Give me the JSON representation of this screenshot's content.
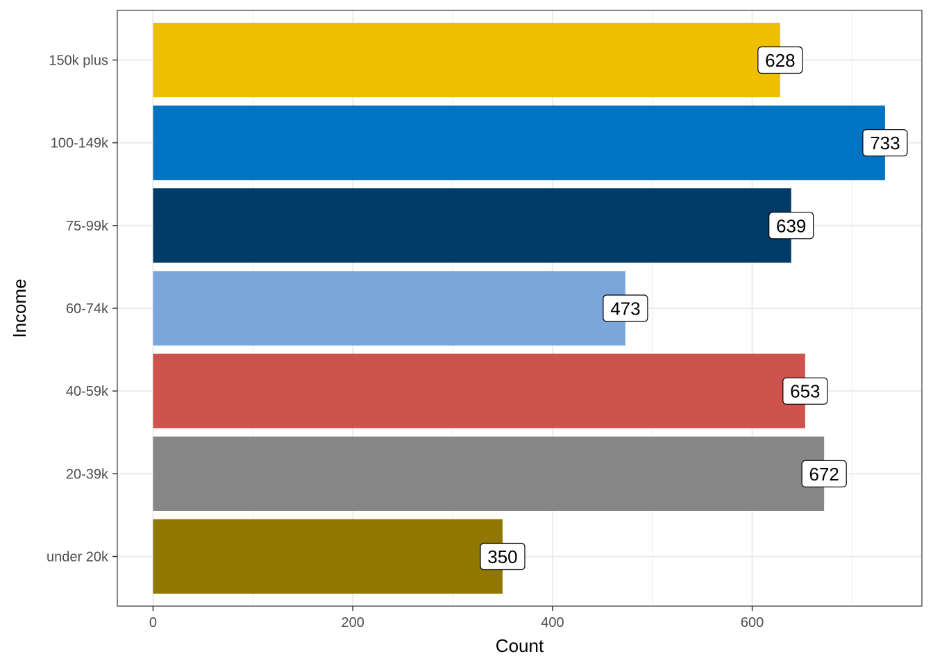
{
  "chart_data": {
    "type": "bar",
    "orientation": "horizontal",
    "categories": [
      "150k plus",
      "100-149k",
      "75-99k",
      "60-74k",
      "40-59k",
      "20-39k",
      "under 20k"
    ],
    "values": [
      628,
      733,
      639,
      473,
      653,
      672,
      350
    ],
    "colors": [
      "#EFC000",
      "#0073C2",
      "#003C67",
      "#7AA6DC",
      "#CD534C",
      "#868686",
      "#8F7700"
    ],
    "data_labels": [
      "628",
      "733",
      "639",
      "473",
      "653",
      "672",
      "350"
    ],
    "xlabel": "Count",
    "ylabel": "Income",
    "x_ticks": [
      0,
      200,
      400,
      600
    ],
    "x_tick_labels": [
      "0",
      "200",
      "400",
      "600"
    ],
    "xlim": [
      -35.8,
      769.9
    ],
    "grid": true,
    "legend": "none",
    "panel_border_color": "#333333",
    "grid_color": "#ebebeb"
  }
}
